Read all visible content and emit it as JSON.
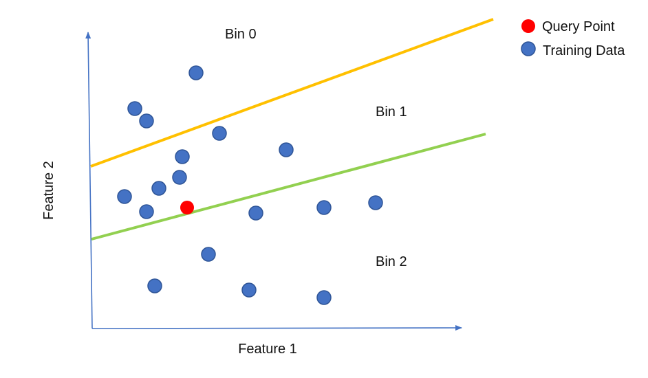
{
  "axes": {
    "x_label": "Feature 1",
    "y_label": "Feature 2",
    "color": "#4472C4"
  },
  "bins": [
    {
      "label": "Bin 0"
    },
    {
      "label": "Bin 1"
    },
    {
      "label": "Bin 2"
    }
  ],
  "boundaries": [
    {
      "name": "upper-boundary",
      "color": "#FFC000"
    },
    {
      "name": "lower-boundary",
      "color": "#92D050"
    }
  ],
  "legend": {
    "items": [
      {
        "label": "Query Point",
        "color": "#FF0000"
      },
      {
        "label": "Training Data",
        "color": "#4472C4"
      }
    ]
  }
}
